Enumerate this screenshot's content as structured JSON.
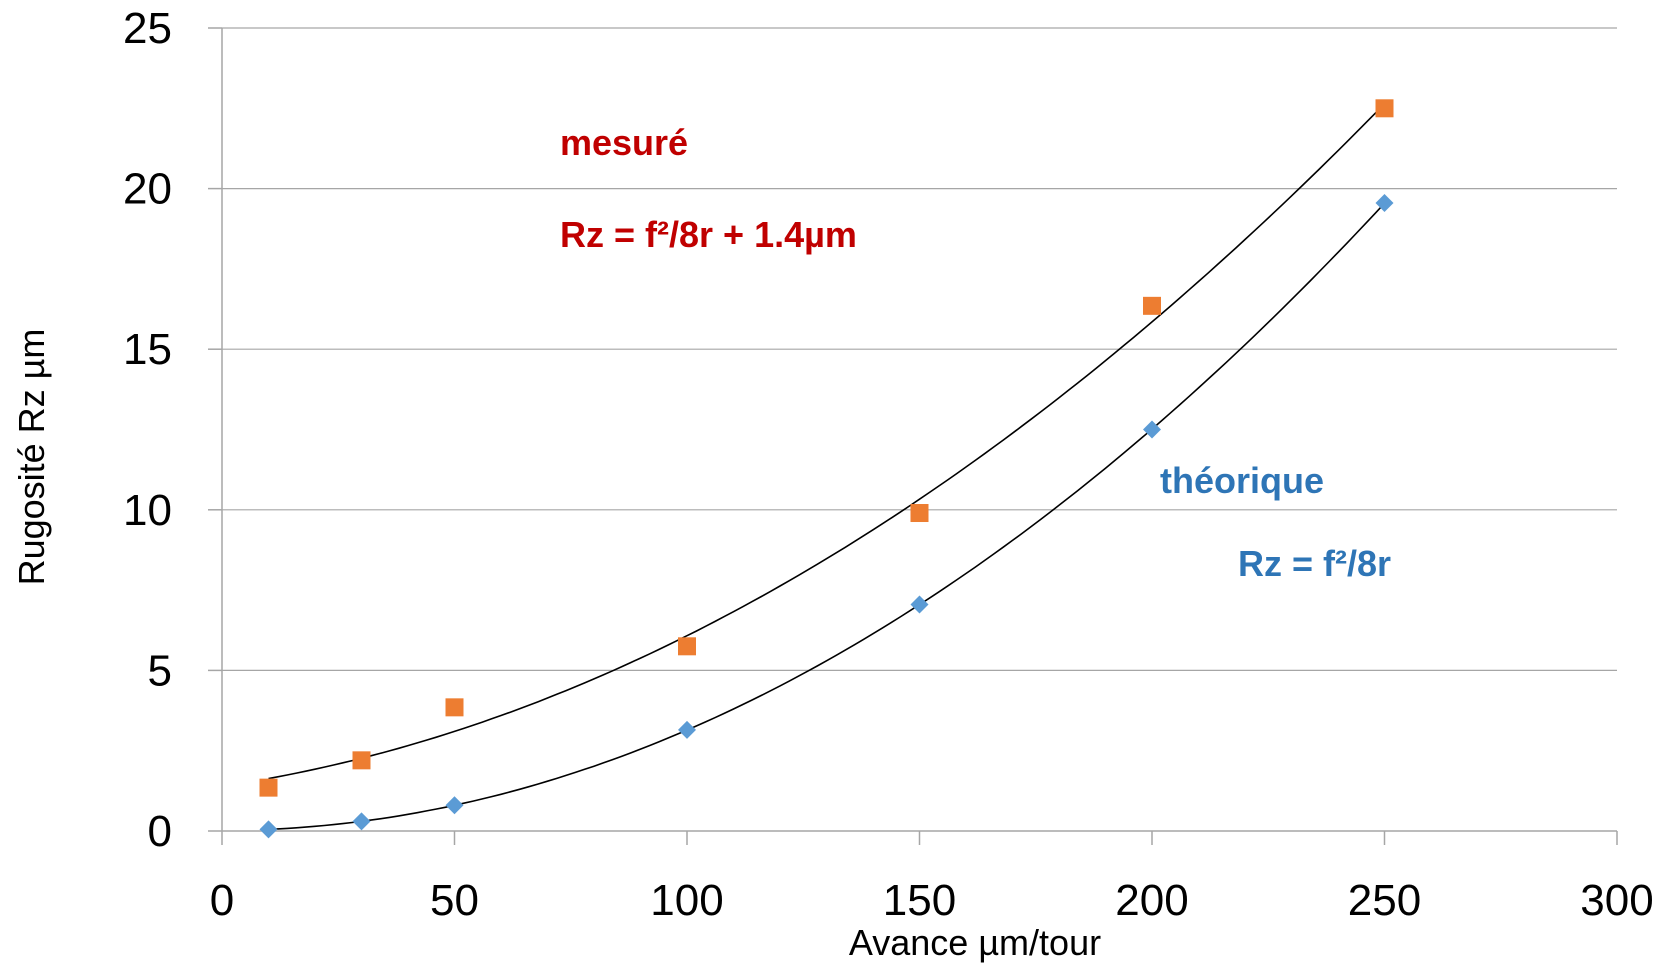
{
  "chart_data": {
    "type": "scatter",
    "xlabel": "Avance µm/tour",
    "ylabel": "Rugosité Rz µm",
    "xlim": [
      0,
      300
    ],
    "ylim": [
      0,
      25
    ],
    "x_ticks": [
      0,
      50,
      100,
      150,
      200,
      250,
      300
    ],
    "y_ticks": [
      0,
      5,
      10,
      15,
      20,
      25
    ],
    "grid": "horizontal",
    "legend": "none",
    "series": [
      {
        "marker": "square",
        "color": "#ED7D31",
        "x": [
          10,
          30,
          50,
          100,
          150,
          200,
          250
        ],
        "y": [
          1.35,
          2.2,
          3.85,
          5.75,
          9.9,
          16.35,
          22.5
        ]
      },
      {
        "marker": "diamond",
        "color": "#5B9BD5",
        "x": [
          10,
          30,
          50,
          100,
          150,
          200,
          250
        ],
        "y": [
          0.05,
          0.3,
          0.8,
          3.15,
          7.05,
          12.5,
          19.55
        ]
      }
    ],
    "annotations": [
      {
        "text": "mesuré",
        "color": "#C00000"
      },
      {
        "text": "Rz = f²/8r + 1.4µm",
        "color": "#C00000"
      },
      {
        "text": "théorique",
        "color": "#2E75B6"
      },
      {
        "text": "Rz = f²/8r",
        "color": "#2E75B6"
      }
    ]
  }
}
